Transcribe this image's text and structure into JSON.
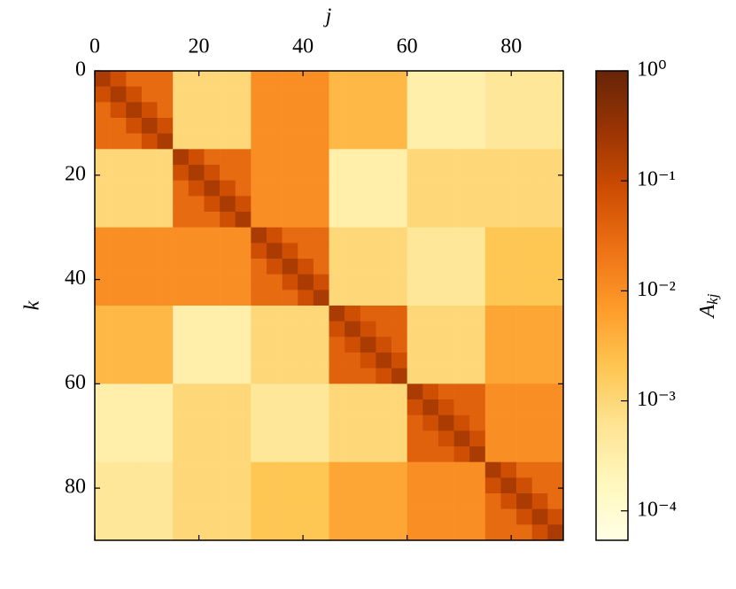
{
  "chart_data": {
    "type": "heatmap",
    "x_label": "j",
    "y_label": "k",
    "colorbar_label": "A",
    "colorbar_label_sub": "kj",
    "x_bins": [
      0,
      3,
      6,
      9,
      12,
      15,
      18,
      21,
      24,
      27,
      30,
      33,
      36,
      39,
      42,
      45,
      48,
      51,
      54,
      57,
      60,
      63,
      66,
      69,
      72,
      75,
      78,
      81,
      84,
      87,
      90
    ],
    "y_bins": [
      0,
      3,
      6,
      9,
      12,
      15,
      18,
      21,
      24,
      27,
      30,
      33,
      36,
      39,
      42,
      45,
      48,
      51,
      54,
      57,
      60,
      63,
      66,
      69,
      72,
      75,
      78,
      81,
      84,
      87,
      90
    ],
    "xlim": [
      0,
      90
    ],
    "ylim": [
      90,
      0
    ],
    "xticks": [
      0,
      20,
      40,
      60,
      80
    ],
    "yticks": [
      0,
      20,
      40,
      60,
      80
    ],
    "color_scale": "log",
    "clim": [
      5.4e-05,
      1
    ],
    "colorbar_ticks": [
      {
        "value": 0.0001,
        "label": "10⁻⁴"
      },
      {
        "value": 0.001,
        "label": "10⁻³"
      },
      {
        "value": 0.01,
        "label": "10⁻²"
      },
      {
        "value": 0.1,
        "label": "10⁻¹"
      },
      {
        "value": 1,
        "label": "10⁰"
      }
    ],
    "colormap": [
      "#ffffe5",
      "#fff7bc",
      "#fee391",
      "#fec44f",
      "#fe9929",
      "#ec7014",
      "#cc4c02",
      "#993404",
      "#662506"
    ],
    "z": [
      [
        0.2,
        0.08,
        0.03,
        0.03,
        0.03,
        0.001,
        0.001,
        0.001,
        0.001,
        0.001,
        0.01,
        0.01,
        0.01,
        0.01,
        0.01,
        0.003,
        0.003,
        0.003,
        0.003,
        0.003,
        0.0003,
        0.0003,
        0.0003,
        0.0003,
        0.0003,
        0.0005,
        0.0005,
        0.0005,
        0.0005,
        0.0005
      ],
      [
        0.08,
        0.2,
        0.08,
        0.03,
        0.03,
        0.001,
        0.001,
        0.001,
        0.001,
        0.001,
        0.01,
        0.01,
        0.01,
        0.01,
        0.01,
        0.003,
        0.003,
        0.003,
        0.003,
        0.003,
        0.0003,
        0.0003,
        0.0003,
        0.0003,
        0.0003,
        0.0005,
        0.0005,
        0.0005,
        0.0005,
        0.0005
      ],
      [
        0.03,
        0.08,
        0.2,
        0.08,
        0.03,
        0.001,
        0.001,
        0.001,
        0.001,
        0.001,
        0.01,
        0.01,
        0.01,
        0.01,
        0.01,
        0.003,
        0.003,
        0.003,
        0.003,
        0.003,
        0.0003,
        0.0003,
        0.0003,
        0.0003,
        0.0003,
        0.0005,
        0.0005,
        0.0005,
        0.0005,
        0.0005
      ],
      [
        0.03,
        0.03,
        0.08,
        0.2,
        0.08,
        0.001,
        0.001,
        0.001,
        0.001,
        0.001,
        0.01,
        0.01,
        0.01,
        0.01,
        0.01,
        0.003,
        0.003,
        0.003,
        0.003,
        0.003,
        0.0003,
        0.0003,
        0.0003,
        0.0003,
        0.0003,
        0.0005,
        0.0005,
        0.0005,
        0.0005,
        0.0005
      ],
      [
        0.03,
        0.03,
        0.03,
        0.08,
        0.2,
        0.001,
        0.001,
        0.001,
        0.001,
        0.001,
        0.01,
        0.01,
        0.01,
        0.01,
        0.01,
        0.003,
        0.003,
        0.003,
        0.003,
        0.003,
        0.0003,
        0.0003,
        0.0003,
        0.0003,
        0.0003,
        0.0005,
        0.0005,
        0.0005,
        0.0005,
        0.0005
      ],
      [
        0.001,
        0.001,
        0.001,
        0.001,
        0.001,
        0.2,
        0.08,
        0.03,
        0.03,
        0.03,
        0.01,
        0.01,
        0.01,
        0.01,
        0.01,
        0.0003,
        0.0003,
        0.0003,
        0.0003,
        0.0003,
        0.001,
        0.001,
        0.001,
        0.001,
        0.001,
        0.001,
        0.001,
        0.001,
        0.001,
        0.001
      ],
      [
        0.001,
        0.001,
        0.001,
        0.001,
        0.001,
        0.08,
        0.2,
        0.08,
        0.03,
        0.03,
        0.01,
        0.01,
        0.01,
        0.01,
        0.01,
        0.0003,
        0.0003,
        0.0003,
        0.0003,
        0.0003,
        0.001,
        0.001,
        0.001,
        0.001,
        0.001,
        0.001,
        0.001,
        0.001,
        0.001,
        0.001
      ],
      [
        0.001,
        0.001,
        0.001,
        0.001,
        0.001,
        0.03,
        0.08,
        0.2,
        0.08,
        0.03,
        0.01,
        0.01,
        0.01,
        0.01,
        0.01,
        0.0003,
        0.0003,
        0.0003,
        0.0003,
        0.0003,
        0.001,
        0.001,
        0.001,
        0.001,
        0.001,
        0.001,
        0.001,
        0.001,
        0.001,
        0.001
      ],
      [
        0.001,
        0.001,
        0.001,
        0.001,
        0.001,
        0.03,
        0.03,
        0.08,
        0.2,
        0.08,
        0.01,
        0.01,
        0.01,
        0.01,
        0.01,
        0.0003,
        0.0003,
        0.0003,
        0.0003,
        0.0003,
        0.001,
        0.001,
        0.001,
        0.001,
        0.001,
        0.001,
        0.001,
        0.001,
        0.001,
        0.001
      ],
      [
        0.001,
        0.001,
        0.001,
        0.001,
        0.001,
        0.03,
        0.03,
        0.03,
        0.08,
        0.2,
        0.01,
        0.01,
        0.01,
        0.01,
        0.01,
        0.0003,
        0.0003,
        0.0003,
        0.0003,
        0.0003,
        0.001,
        0.001,
        0.001,
        0.001,
        0.001,
        0.001,
        0.001,
        0.001,
        0.001,
        0.001
      ],
      [
        0.01,
        0.01,
        0.01,
        0.01,
        0.01,
        0.01,
        0.01,
        0.01,
        0.01,
        0.01,
        0.2,
        0.08,
        0.03,
        0.03,
        0.03,
        0.001,
        0.001,
        0.001,
        0.001,
        0.001,
        0.0005,
        0.0005,
        0.0005,
        0.0005,
        0.0005,
        0.002,
        0.002,
        0.002,
        0.002,
        0.002
      ],
      [
        0.01,
        0.01,
        0.01,
        0.01,
        0.01,
        0.01,
        0.01,
        0.01,
        0.01,
        0.01,
        0.08,
        0.2,
        0.08,
        0.03,
        0.03,
        0.001,
        0.001,
        0.001,
        0.001,
        0.001,
        0.0005,
        0.0005,
        0.0005,
        0.0005,
        0.0005,
        0.002,
        0.002,
        0.002,
        0.002,
        0.002
      ],
      [
        0.01,
        0.01,
        0.01,
        0.01,
        0.01,
        0.01,
        0.01,
        0.01,
        0.01,
        0.01,
        0.03,
        0.08,
        0.2,
        0.08,
        0.03,
        0.001,
        0.001,
        0.001,
        0.001,
        0.001,
        0.0005,
        0.0005,
        0.0005,
        0.0005,
        0.0005,
        0.002,
        0.002,
        0.002,
        0.002,
        0.002
      ],
      [
        0.01,
        0.01,
        0.01,
        0.01,
        0.01,
        0.01,
        0.01,
        0.01,
        0.01,
        0.01,
        0.03,
        0.03,
        0.08,
        0.2,
        0.08,
        0.001,
        0.001,
        0.001,
        0.001,
        0.001,
        0.0005,
        0.0005,
        0.0005,
        0.0005,
        0.0005,
        0.002,
        0.002,
        0.002,
        0.002,
        0.002
      ],
      [
        0.01,
        0.01,
        0.01,
        0.01,
        0.01,
        0.01,
        0.01,
        0.01,
        0.01,
        0.01,
        0.03,
        0.03,
        0.03,
        0.08,
        0.2,
        0.001,
        0.001,
        0.001,
        0.001,
        0.001,
        0.0005,
        0.0005,
        0.0005,
        0.0005,
        0.0005,
        0.002,
        0.002,
        0.002,
        0.002,
        0.002
      ],
      [
        0.003,
        0.003,
        0.003,
        0.003,
        0.003,
        0.0003,
        0.0003,
        0.0003,
        0.0003,
        0.0003,
        0.001,
        0.001,
        0.001,
        0.001,
        0.001,
        0.2,
        0.08,
        0.04,
        0.04,
        0.04,
        0.001,
        0.001,
        0.001,
        0.001,
        0.001,
        0.005,
        0.005,
        0.005,
        0.005,
        0.005
      ],
      [
        0.003,
        0.003,
        0.003,
        0.003,
        0.003,
        0.0003,
        0.0003,
        0.0003,
        0.0003,
        0.0003,
        0.001,
        0.001,
        0.001,
        0.001,
        0.001,
        0.08,
        0.2,
        0.08,
        0.04,
        0.04,
        0.001,
        0.001,
        0.001,
        0.001,
        0.001,
        0.005,
        0.005,
        0.005,
        0.005,
        0.005
      ],
      [
        0.003,
        0.003,
        0.003,
        0.003,
        0.003,
        0.0003,
        0.0003,
        0.0003,
        0.0003,
        0.0003,
        0.001,
        0.001,
        0.001,
        0.001,
        0.001,
        0.04,
        0.08,
        0.2,
        0.08,
        0.04,
        0.001,
        0.001,
        0.001,
        0.001,
        0.001,
        0.005,
        0.005,
        0.005,
        0.005,
        0.005
      ],
      [
        0.003,
        0.003,
        0.003,
        0.003,
        0.003,
        0.0003,
        0.0003,
        0.0003,
        0.0003,
        0.0003,
        0.001,
        0.001,
        0.001,
        0.001,
        0.001,
        0.04,
        0.04,
        0.08,
        0.2,
        0.08,
        0.001,
        0.001,
        0.001,
        0.001,
        0.001,
        0.005,
        0.005,
        0.005,
        0.005,
        0.005
      ],
      [
        0.003,
        0.003,
        0.003,
        0.003,
        0.003,
        0.0003,
        0.0003,
        0.0003,
        0.0003,
        0.0003,
        0.001,
        0.001,
        0.001,
        0.001,
        0.001,
        0.04,
        0.04,
        0.04,
        0.08,
        0.2,
        0.001,
        0.001,
        0.001,
        0.001,
        0.001,
        0.005,
        0.005,
        0.005,
        0.005,
        0.005
      ],
      [
        0.0003,
        0.0003,
        0.0003,
        0.0003,
        0.0003,
        0.001,
        0.001,
        0.001,
        0.001,
        0.001,
        0.0005,
        0.0005,
        0.0005,
        0.0005,
        0.0005,
        0.001,
        0.001,
        0.001,
        0.001,
        0.001,
        0.2,
        0.08,
        0.04,
        0.04,
        0.04,
        0.01,
        0.01,
        0.01,
        0.01,
        0.01
      ],
      [
        0.0003,
        0.0003,
        0.0003,
        0.0003,
        0.0003,
        0.001,
        0.001,
        0.001,
        0.001,
        0.001,
        0.0005,
        0.0005,
        0.0005,
        0.0005,
        0.0005,
        0.001,
        0.001,
        0.001,
        0.001,
        0.001,
        0.08,
        0.2,
        0.08,
        0.04,
        0.04,
        0.01,
        0.01,
        0.01,
        0.01,
        0.01
      ],
      [
        0.0003,
        0.0003,
        0.0003,
        0.0003,
        0.0003,
        0.001,
        0.001,
        0.001,
        0.001,
        0.001,
        0.0005,
        0.0005,
        0.0005,
        0.0005,
        0.0005,
        0.001,
        0.001,
        0.001,
        0.001,
        0.001,
        0.04,
        0.08,
        0.2,
        0.08,
        0.04,
        0.01,
        0.01,
        0.01,
        0.01,
        0.01
      ],
      [
        0.0003,
        0.0003,
        0.0003,
        0.0003,
        0.0003,
        0.001,
        0.001,
        0.001,
        0.001,
        0.001,
        0.0005,
        0.0005,
        0.0005,
        0.0005,
        0.0005,
        0.001,
        0.001,
        0.001,
        0.001,
        0.001,
        0.04,
        0.04,
        0.08,
        0.2,
        0.08,
        0.01,
        0.01,
        0.01,
        0.01,
        0.01
      ],
      [
        0.0003,
        0.0003,
        0.0003,
        0.0003,
        0.0003,
        0.001,
        0.001,
        0.001,
        0.001,
        0.001,
        0.0005,
        0.0005,
        0.0005,
        0.0005,
        0.0005,
        0.001,
        0.001,
        0.001,
        0.001,
        0.001,
        0.04,
        0.04,
        0.04,
        0.08,
        0.2,
        0.01,
        0.01,
        0.01,
        0.01,
        0.01
      ],
      [
        0.0005,
        0.0005,
        0.0005,
        0.0005,
        0.0005,
        0.001,
        0.001,
        0.001,
        0.001,
        0.001,
        0.002,
        0.002,
        0.002,
        0.002,
        0.002,
        0.005,
        0.005,
        0.005,
        0.005,
        0.005,
        0.01,
        0.01,
        0.01,
        0.01,
        0.01,
        0.2,
        0.08,
        0.03,
        0.03,
        0.03
      ],
      [
        0.0005,
        0.0005,
        0.0005,
        0.0005,
        0.0005,
        0.001,
        0.001,
        0.001,
        0.001,
        0.001,
        0.002,
        0.002,
        0.002,
        0.002,
        0.002,
        0.005,
        0.005,
        0.005,
        0.005,
        0.005,
        0.01,
        0.01,
        0.01,
        0.01,
        0.01,
        0.08,
        0.2,
        0.08,
        0.03,
        0.03
      ],
      [
        0.0005,
        0.0005,
        0.0005,
        0.0005,
        0.0005,
        0.001,
        0.001,
        0.001,
        0.001,
        0.001,
        0.002,
        0.002,
        0.002,
        0.002,
        0.002,
        0.005,
        0.005,
        0.005,
        0.005,
        0.005,
        0.01,
        0.01,
        0.01,
        0.01,
        0.01,
        0.03,
        0.08,
        0.2,
        0.08,
        0.03
      ],
      [
        0.0005,
        0.0005,
        0.0005,
        0.0005,
        0.0005,
        0.001,
        0.001,
        0.001,
        0.001,
        0.001,
        0.002,
        0.002,
        0.002,
        0.002,
        0.002,
        0.005,
        0.005,
        0.005,
        0.005,
        0.005,
        0.01,
        0.01,
        0.01,
        0.01,
        0.01,
        0.03,
        0.03,
        0.08,
        0.2,
        0.08
      ],
      [
        0.0005,
        0.0005,
        0.0005,
        0.0005,
        0.0005,
        0.001,
        0.001,
        0.001,
        0.001,
        0.001,
        0.002,
        0.002,
        0.002,
        0.002,
        0.002,
        0.005,
        0.005,
        0.005,
        0.005,
        0.005,
        0.01,
        0.01,
        0.01,
        0.01,
        0.01,
        0.03,
        0.03,
        0.03,
        0.08,
        0.2
      ]
    ]
  }
}
